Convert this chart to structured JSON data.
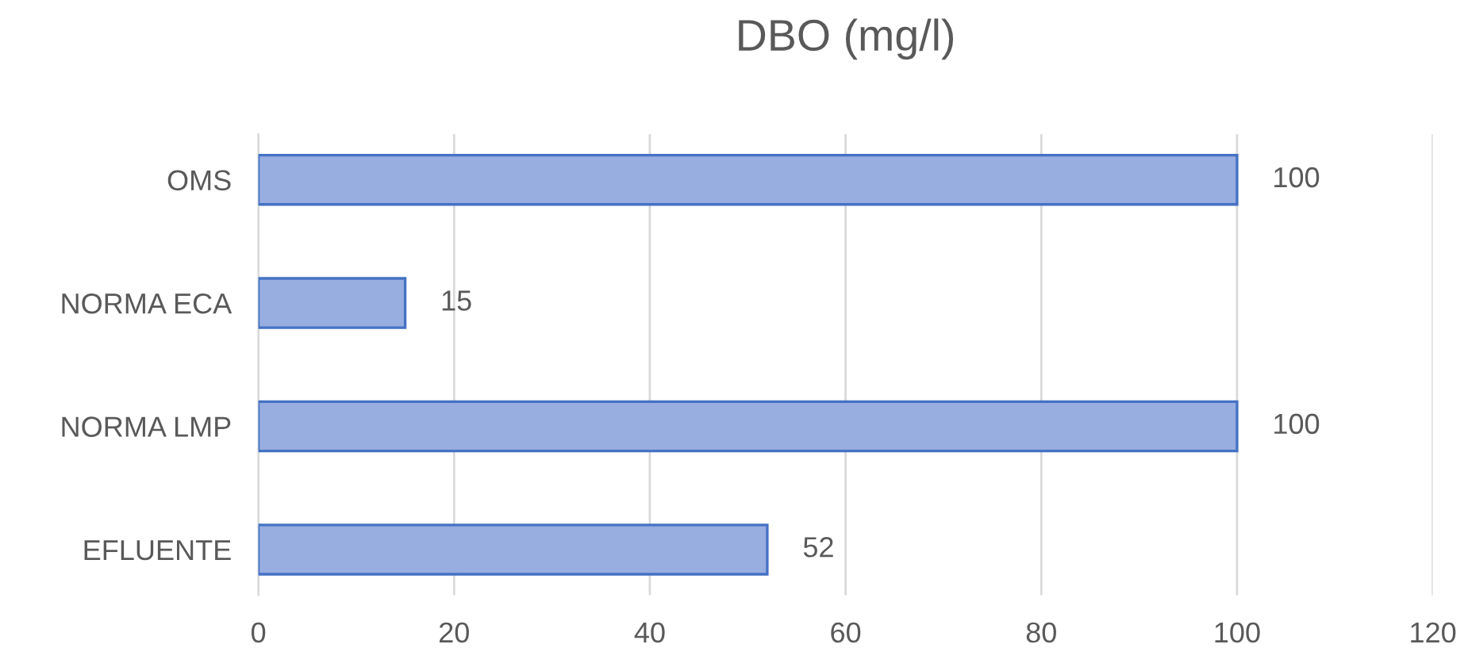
{
  "chart_data": {
    "type": "bar",
    "orientation": "horizontal",
    "title": "DBO (mg/l)",
    "categories": [
      "OMS",
      "NORMA ECA",
      "NORMA LMP",
      "EFLUENTE"
    ],
    "values": [
      100,
      15,
      100,
      52
    ],
    "color": "#98ade0",
    "xlim": [
      0,
      120
    ],
    "xticks": [
      0,
      20,
      40,
      60,
      80,
      100,
      120
    ],
    "grid": "x",
    "data_labels": true,
    "legend": false
  }
}
